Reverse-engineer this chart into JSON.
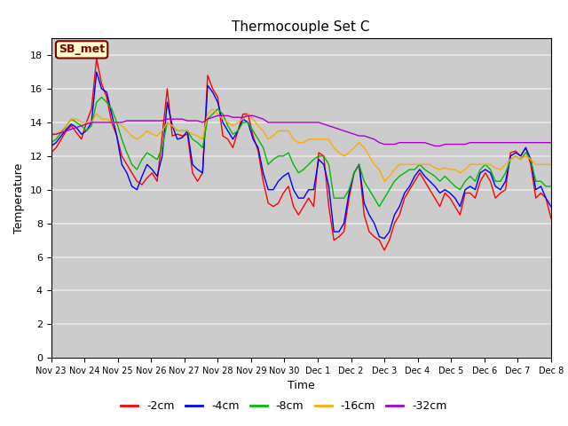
{
  "title": "Thermocouple Set C",
  "xlabel": "Time",
  "ylabel": "Temperature",
  "ylim": [
    0,
    19
  ],
  "yticks": [
    0,
    2,
    4,
    6,
    8,
    10,
    12,
    14,
    16,
    18
  ],
  "annotation_text": "SB_met",
  "annotation_box_color": "#ffffcc",
  "annotation_text_color": "#800000",
  "annotation_border_color": "#800000",
  "fig_bg_color": "#ffffff",
  "plot_bg_color": "#cccccc",
  "grid_color": "#e8e8e8",
  "colors": {
    "-2cm": "#ff0000",
    "-4cm": "#0000ff",
    "-8cm": "#00bb00",
    "-16cm": "#ffaa00",
    "-32cm": "#aa00cc"
  },
  "legend_labels": [
    "-2cm",
    "-4cm",
    "-8cm",
    "-16cm",
    "-32cm"
  ],
  "x_tick_labels": [
    "Nov 23",
    "Nov 24",
    "Nov 25",
    "Nov 26",
    "Nov 27",
    "Nov 28",
    "Nov 29",
    "Nov 30",
    "Dec 1",
    "Dec 2",
    "Dec 3",
    "Dec 4",
    "Dec 5",
    "Dec 6",
    "Dec 7",
    "Dec 8"
  ],
  "series": {
    "-2cm": [
      12.2,
      12.5,
      13.0,
      13.5,
      13.8,
      13.4,
      13.0,
      14.0,
      14.8,
      17.8,
      16.3,
      15.5,
      14.0,
      13.2,
      12.0,
      11.5,
      11.0,
      10.5,
      10.3,
      10.7,
      11.0,
      10.5,
      13.2,
      16.0,
      13.2,
      13.3,
      13.2,
      13.3,
      11.0,
      10.5,
      11.0,
      16.8,
      16.0,
      15.5,
      13.2,
      13.0,
      12.5,
      13.5,
      14.5,
      14.5,
      13.2,
      12.3,
      10.5,
      9.2,
      9.0,
      9.2,
      9.8,
      10.2,
      9.0,
      8.5,
      9.0,
      9.5,
      9.0,
      12.2,
      12.0,
      9.0,
      7.0,
      7.2,
      7.5,
      9.5,
      11.0,
      11.5,
      8.5,
      7.5,
      7.2,
      7.0,
      6.4,
      7.0,
      8.0,
      8.5,
      9.5,
      10.0,
      10.5,
      11.0,
      10.5,
      10.0,
      9.5,
      9.0,
      9.8,
      9.5,
      9.0,
      8.5,
      9.8,
      9.8,
      9.5,
      10.5,
      11.0,
      10.5,
      9.5,
      9.8,
      10.0,
      12.2,
      12.3,
      12.0,
      12.5,
      11.5,
      9.5,
      9.8,
      9.5,
      8.3
    ],
    "-4cm": [
      12.6,
      12.8,
      13.2,
      13.6,
      13.9,
      13.7,
      13.3,
      13.5,
      14.0,
      17.0,
      16.0,
      15.8,
      14.5,
      13.2,
      11.5,
      11.0,
      10.2,
      10.0,
      10.8,
      11.5,
      11.2,
      10.8,
      12.0,
      15.2,
      13.8,
      13.0,
      13.1,
      13.5,
      11.5,
      11.2,
      11.0,
      16.2,
      15.8,
      15.2,
      14.0,
      13.5,
      13.0,
      13.5,
      14.2,
      14.0,
      13.0,
      12.5,
      11.0,
      10.0,
      10.0,
      10.5,
      10.8,
      11.0,
      10.0,
      9.5,
      9.5,
      10.0,
      10.0,
      11.8,
      11.5,
      10.2,
      7.5,
      7.5,
      8.0,
      9.8,
      11.0,
      11.5,
      9.2,
      8.5,
      8.0,
      7.2,
      7.1,
      7.5,
      8.5,
      9.0,
      9.8,
      10.2,
      10.8,
      11.2,
      10.8,
      10.5,
      10.2,
      9.8,
      10.0,
      9.8,
      9.5,
      9.0,
      10.0,
      10.2,
      10.0,
      11.0,
      11.2,
      11.0,
      10.2,
      10.0,
      10.5,
      12.0,
      12.2,
      12.0,
      12.5,
      11.8,
      10.0,
      10.2,
      9.5,
      9.0
    ],
    "-8cm": [
      12.8,
      13.0,
      13.4,
      13.8,
      14.2,
      14.0,
      13.8,
      13.5,
      13.8,
      15.2,
      15.5,
      15.2,
      14.8,
      14.0,
      13.0,
      12.2,
      11.5,
      11.2,
      11.8,
      12.2,
      12.0,
      11.8,
      12.5,
      14.0,
      13.8,
      13.5,
      13.5,
      13.5,
      13.0,
      12.8,
      12.5,
      14.2,
      14.5,
      14.8,
      14.5,
      13.8,
      13.3,
      13.5,
      14.0,
      14.0,
      13.5,
      13.0,
      12.5,
      11.5,
      11.8,
      12.0,
      12.0,
      12.2,
      11.5,
      11.0,
      11.2,
      11.5,
      11.8,
      12.0,
      12.0,
      11.5,
      9.5,
      9.5,
      9.5,
      10.0,
      11.0,
      11.5,
      10.5,
      10.0,
      9.5,
      9.0,
      9.5,
      10.0,
      10.5,
      10.8,
      11.0,
      11.2,
      11.2,
      11.5,
      11.2,
      11.0,
      10.8,
      10.5,
      10.8,
      10.5,
      10.2,
      10.0,
      10.5,
      10.8,
      10.5,
      11.2,
      11.5,
      11.2,
      10.5,
      10.5,
      11.0,
      11.8,
      12.0,
      11.8,
      12.2,
      11.8,
      10.5,
      10.5,
      10.2,
      10.2
    ],
    "-16cm": [
      13.2,
      13.3,
      13.5,
      13.8,
      14.2,
      14.2,
      14.0,
      14.0,
      14.0,
      14.5,
      14.2,
      14.2,
      14.0,
      14.0,
      13.8,
      13.5,
      13.2,
      13.0,
      13.2,
      13.5,
      13.3,
      13.2,
      13.5,
      14.0,
      13.8,
      13.5,
      13.5,
      13.5,
      13.3,
      13.2,
      13.0,
      14.5,
      14.8,
      14.5,
      14.2,
      14.0,
      13.8,
      14.0,
      14.2,
      14.5,
      14.2,
      13.8,
      13.5,
      13.0,
      13.2,
      13.5,
      13.5,
      13.5,
      13.0,
      12.8,
      12.8,
      13.0,
      13.0,
      13.0,
      13.0,
      13.0,
      12.5,
      12.2,
      12.0,
      12.2,
      12.5,
      12.8,
      12.5,
      12.0,
      11.5,
      11.2,
      10.5,
      10.8,
      11.2,
      11.5,
      11.5,
      11.5,
      11.5,
      11.5,
      11.5,
      11.5,
      11.3,
      11.2,
      11.3,
      11.2,
      11.2,
      11.0,
      11.2,
      11.5,
      11.5,
      11.5,
      11.5,
      11.5,
      11.3,
      11.2,
      11.5,
      11.8,
      12.0,
      11.8,
      12.0,
      11.8,
      11.5,
      11.5,
      11.5,
      11.5
    ],
    "-32cm": [
      13.3,
      13.3,
      13.4,
      13.5,
      13.6,
      13.7,
      13.8,
      13.9,
      14.0,
      14.0,
      14.0,
      14.0,
      14.0,
      14.0,
      14.0,
      14.1,
      14.1,
      14.1,
      14.1,
      14.1,
      14.1,
      14.1,
      14.1,
      14.2,
      14.2,
      14.2,
      14.2,
      14.1,
      14.1,
      14.1,
      14.0,
      14.2,
      14.3,
      14.4,
      14.4,
      14.4,
      14.3,
      14.3,
      14.3,
      14.4,
      14.4,
      14.3,
      14.2,
      14.0,
      14.0,
      14.0,
      14.0,
      14.0,
      14.0,
      14.0,
      14.0,
      14.0,
      14.0,
      14.0,
      13.9,
      13.8,
      13.7,
      13.6,
      13.5,
      13.4,
      13.3,
      13.2,
      13.2,
      13.1,
      13.0,
      12.8,
      12.7,
      12.7,
      12.7,
      12.8,
      12.8,
      12.8,
      12.8,
      12.8,
      12.8,
      12.7,
      12.6,
      12.6,
      12.7,
      12.7,
      12.7,
      12.7,
      12.7,
      12.8,
      12.8,
      12.8,
      12.8,
      12.8,
      12.8,
      12.8,
      12.8,
      12.8,
      12.8,
      12.8,
      12.8,
      12.8,
      12.8,
      12.8,
      12.8,
      12.8
    ]
  }
}
